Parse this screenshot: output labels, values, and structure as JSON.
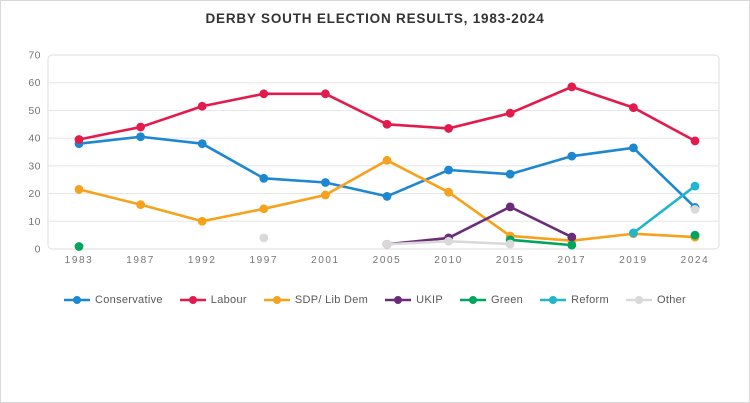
{
  "title": "DERBY SOUTH ELECTION RESULTS, 1983-2024",
  "chart_data": {
    "type": "line",
    "title": "DERBY SOUTH ELECTION RESULTS, 1983-2024",
    "categories": [
      "1983",
      "1987",
      "1992",
      "1997",
      "2001",
      "2005",
      "2010",
      "2015",
      "2017",
      "2019",
      "2024"
    ],
    "series": [
      {
        "name": "Conservative",
        "color": "#1E87D2",
        "values": [
          38,
          40.5,
          38,
          25.5,
          24,
          19,
          28.5,
          27,
          33.5,
          36.5,
          15
        ]
      },
      {
        "name": "Labour",
        "color": "#E31B4C",
        "values": [
          39.5,
          44,
          51.5,
          56,
          56,
          45,
          43.5,
          49,
          58.5,
          51,
          39
        ]
      },
      {
        "name": "SDP/ Lib Dem",
        "color": "#F6A21D",
        "values": [
          21.5,
          16,
          10,
          14.5,
          19.5,
          32,
          20.5,
          4.7,
          3,
          5.5,
          4.3
        ]
      },
      {
        "name": "UKIP",
        "color": "#6B2D79",
        "values": [
          null,
          null,
          null,
          null,
          null,
          1.7,
          4,
          15.2,
          4.3,
          null,
          null
        ]
      },
      {
        "name": "Green",
        "color": "#00A55F",
        "values": [
          0.9,
          null,
          null,
          null,
          null,
          null,
          null,
          3.3,
          1.4,
          null,
          5
        ]
      },
      {
        "name": "Reform",
        "color": "#22B5CE",
        "values": [
          null,
          null,
          null,
          null,
          null,
          null,
          null,
          null,
          null,
          5.8,
          22.7
        ]
      },
      {
        "name": "Other",
        "color": "#D9D9D9",
        "values": [
          null,
          null,
          null,
          4,
          null,
          1.7,
          2.8,
          1.8,
          null,
          null,
          14.3
        ]
      }
    ],
    "ylim": [
      0,
      70
    ],
    "ytick_step": 10,
    "grid": true,
    "legend_position": "bottom",
    "axis_text_color": "#767676",
    "grid_color": "#e5e5e5",
    "plot_border_color": "#dedede"
  }
}
